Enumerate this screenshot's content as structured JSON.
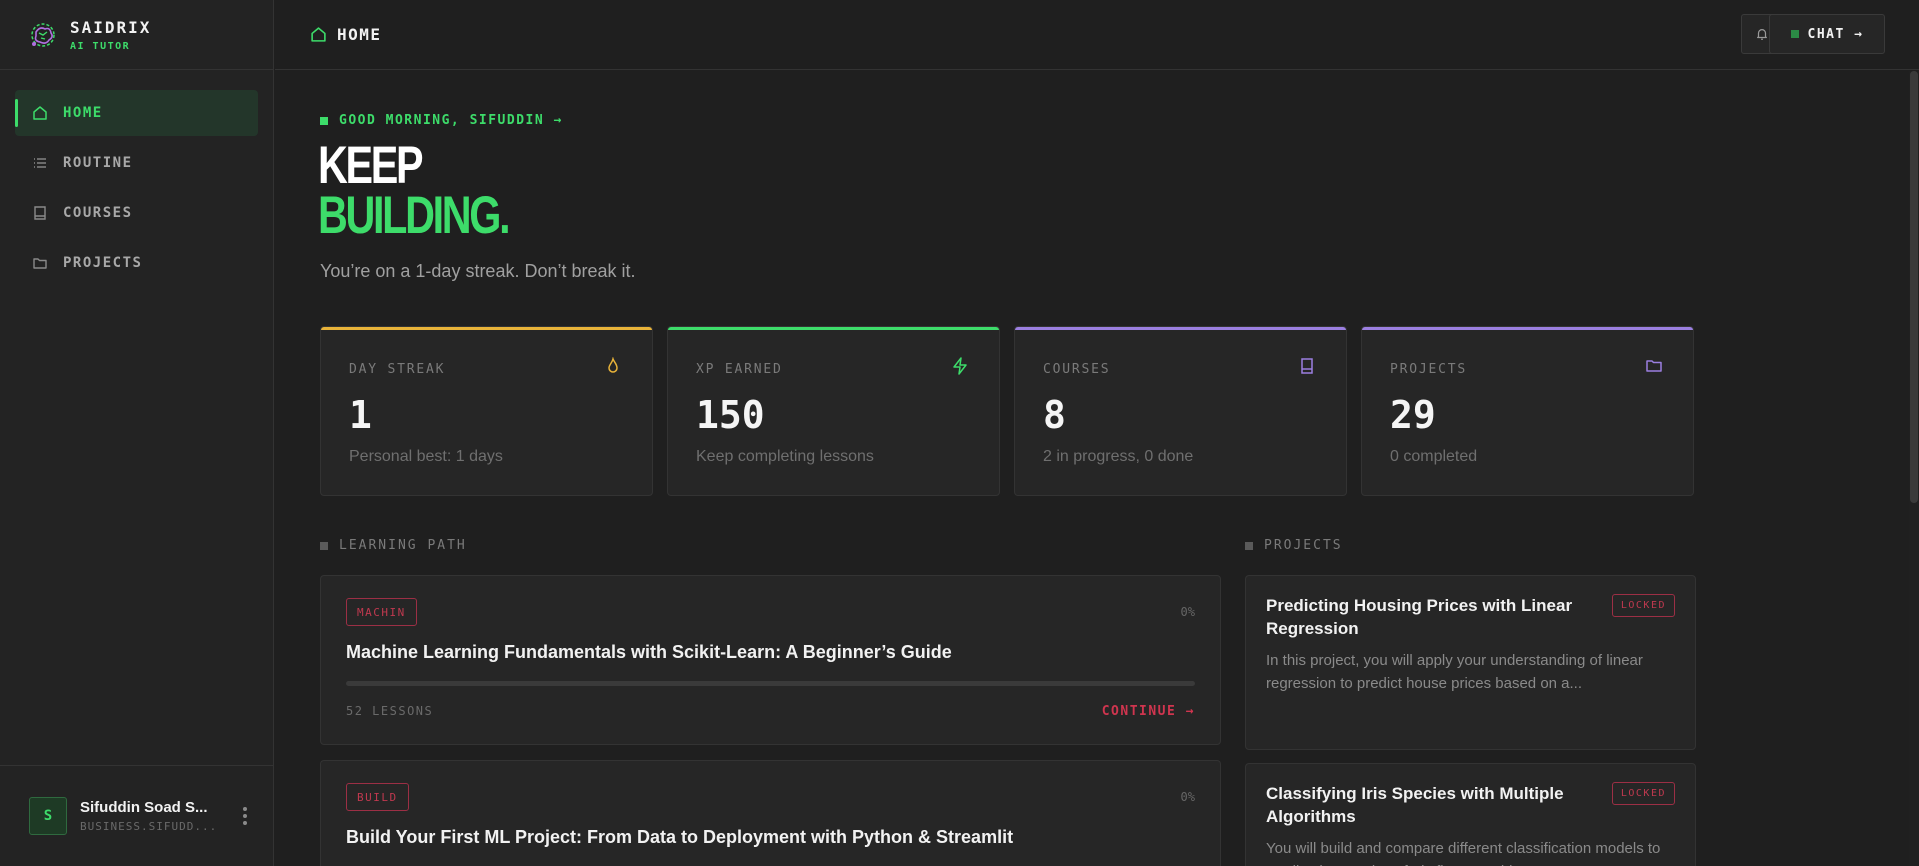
{
  "brand": {
    "name": "SAIDRIX",
    "subtitle": "AI TUTOR"
  },
  "sidebar": {
    "items": [
      {
        "label": "HOME",
        "icon": "home-icon",
        "active": true
      },
      {
        "label": "ROUTINE",
        "icon": "list-icon",
        "active": false
      },
      {
        "label": "COURSES",
        "icon": "book-icon",
        "active": false
      },
      {
        "label": "PROJECTS",
        "icon": "folder-icon",
        "active": false
      }
    ]
  },
  "user": {
    "initial": "S",
    "name": "Sifuddin Soad S...",
    "email": "BUSINESS.SIFUDD..."
  },
  "topbar": {
    "breadcrumb": "HOME",
    "chat_label": "CHAT →"
  },
  "hero": {
    "greeting": "GOOD MORNING, SIFUDDIN →",
    "line1": "KEEP",
    "line2": "BUILDING.",
    "subtitle": "You’re on a 1-day streak. Don’t break it."
  },
  "stats": [
    {
      "title": "DAY STREAK",
      "value": "1",
      "note": "Personal best: 1 days",
      "color": "#e8b339",
      "icon": "flame-icon"
    },
    {
      "title": "XP EARNED",
      "value": "150",
      "note": "Keep completing lessons",
      "color": "#3ddc6a",
      "icon": "lightning-icon"
    },
    {
      "title": "COURSES",
      "value": "8",
      "note": "2 in progress, 0 done",
      "color": "#9b7fe0",
      "icon": "book-icon"
    },
    {
      "title": "PROJECTS",
      "value": "29",
      "note": "0 completed",
      "color": "#9b7fe0",
      "icon": "folder-icon"
    }
  ],
  "learning_path": {
    "heading": "LEARNING PATH",
    "courses": [
      {
        "tag": "MACHIN",
        "percent": "0%",
        "progress": 0,
        "title": "Machine Learning Fundamentals with Scikit-Learn: A Beginner’s Guide",
        "lessons": "52 LESSONS",
        "action": "CONTINUE →"
      },
      {
        "tag": "BUILD",
        "percent": "0%",
        "progress": 0,
        "title": "Build Your First ML Project: From Data to Deployment with Python & Streamlit",
        "lessons": "",
        "action": ""
      }
    ]
  },
  "projects": {
    "heading": "PROJECTS",
    "items": [
      {
        "title": "Predicting Housing Prices with Linear Regression",
        "status": "LOCKED",
        "description": "In this project, you will apply your understanding of linear regression to predict house prices based on a..."
      },
      {
        "title": "Classifying Iris Species with Multiple Algorithms",
        "status": "LOCKED",
        "description": "You will build and compare different classification models to predict the species of Iris flowers. This..."
      }
    ]
  },
  "colors": {
    "accent": "#3ddc6a",
    "danger": "#c0394f",
    "purple": "#9b7fe0",
    "amber": "#e8b339"
  }
}
